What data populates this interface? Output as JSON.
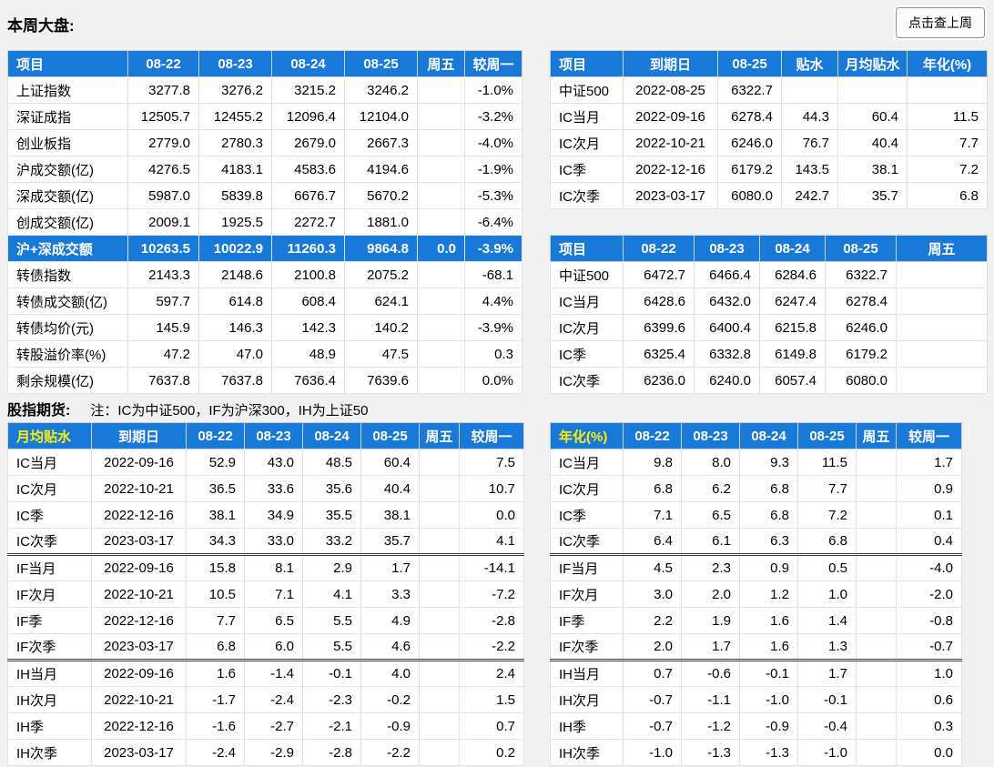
{
  "colors": {
    "header_blue": "#1879D9",
    "accent_yellow": "#FFF200",
    "page_bg": "#F1F1F1"
  },
  "header": {
    "page_title": "本周大盘:",
    "prev_week_button": "点击查上周"
  },
  "futures": {
    "title": "股指期货:",
    "note": "注：IC为中证500，IF为沪深300，IH为上证50"
  },
  "tables": {
    "market": {
      "headers": [
        "项目",
        "08-22",
        "08-23",
        "08-24",
        "08-25",
        "周五",
        "较周一"
      ],
      "accent_header_index": -1,
      "widths": [
        132,
        78,
        80,
        80,
        80,
        52,
        63
      ],
      "aligns": [
        "left",
        "right",
        "right",
        "right",
        "right",
        "right",
        "right"
      ],
      "rows": [
        {
          "cells": [
            "上证指数",
            "3277.8",
            "3276.2",
            "3215.2",
            "3246.2",
            "",
            "-1.0%"
          ]
        },
        {
          "cells": [
            "深证成指",
            "12505.7",
            "12455.2",
            "12096.4",
            "12104.0",
            "",
            "-3.2%"
          ]
        },
        {
          "cells": [
            "创业板指",
            "2779.0",
            "2780.3",
            "2679.0",
            "2667.3",
            "",
            "-4.0%"
          ]
        },
        {
          "cells": [
            "沪成交额(亿)",
            "4276.5",
            "4183.1",
            "4583.6",
            "4194.6",
            "",
            "-1.9%"
          ]
        },
        {
          "cells": [
            "深成交额(亿)",
            "5987.0",
            "5839.8",
            "6676.7",
            "5670.2",
            "",
            "-5.3%"
          ]
        },
        {
          "cells": [
            "创成交额(亿)",
            "2009.1",
            "1925.5",
            "2272.7",
            "1881.0",
            "",
            "-6.4%"
          ]
        },
        {
          "cells": [
            "沪+深成交额",
            "10263.5",
            "10022.9",
            "11260.3",
            "9864.8",
            "0.0",
            "-3.9%"
          ],
          "highlight": true
        },
        {
          "cells": [
            "转债指数",
            "2143.3",
            "2148.6",
            "2100.8",
            "2075.2",
            "",
            "-68.1"
          ]
        },
        {
          "cells": [
            "转债成交额(亿)",
            "597.7",
            "614.8",
            "608.4",
            "624.1",
            "",
            "4.4%"
          ]
        },
        {
          "cells": [
            "转债均价(元)",
            "145.9",
            "146.3",
            "142.3",
            "140.2",
            "",
            "-3.9%"
          ]
        },
        {
          "cells": [
            "转股溢价率(%)",
            "47.2",
            "47.0",
            "48.9",
            "47.5",
            "",
            "0.3"
          ]
        },
        {
          "cells": [
            "剩余规模(亿)",
            "7637.8",
            "7637.8",
            "7636.4",
            "7639.6",
            "",
            "0.0%"
          ]
        }
      ]
    },
    "ic_summary": {
      "headers": [
        "项目",
        "到期日",
        "08-25",
        "贴水",
        "月均贴水",
        "年化(%)"
      ],
      "accent_header_index": -1,
      "widths": [
        80,
        104,
        70,
        62,
        76,
        88
      ],
      "aligns": [
        "left",
        "center",
        "right",
        "right",
        "right",
        "right"
      ],
      "rows": [
        {
          "cells": [
            "中证500",
            "2022-08-25",
            "6322.7",
            "",
            "",
            ""
          ]
        },
        {
          "cells": [
            "IC当月",
            "2022-09-16",
            "6278.4",
            "44.3",
            "60.4",
            "11.5"
          ]
        },
        {
          "cells": [
            "IC次月",
            "2022-10-21",
            "6246.0",
            "76.7",
            "40.4",
            "7.7"
          ]
        },
        {
          "cells": [
            "IC季",
            "2022-12-16",
            "6179.2",
            "143.5",
            "38.1",
            "7.2"
          ]
        },
        {
          "cells": [
            "IC次季",
            "2023-03-17",
            "6080.0",
            "242.7",
            "35.7",
            "6.8"
          ]
        }
      ]
    },
    "ic_daily": {
      "headers": [
        "项目",
        "08-22",
        "08-23",
        "08-24",
        "08-25",
        "周五"
      ],
      "accent_header_index": -1,
      "widths": [
        80,
        78,
        72,
        72,
        78,
        100
      ],
      "aligns": [
        "left",
        "right",
        "right",
        "right",
        "right",
        "right"
      ],
      "rows": [
        {
          "cells": [
            "中证500",
            "6472.7",
            "6466.4",
            "6284.6",
            "6322.7",
            ""
          ]
        },
        {
          "cells": [
            "IC当月",
            "6428.6",
            "6432.0",
            "6247.4",
            "6278.4",
            ""
          ]
        },
        {
          "cells": [
            "IC次月",
            "6399.6",
            "6400.4",
            "6215.8",
            "6246.0",
            ""
          ]
        },
        {
          "cells": [
            "IC季",
            "6325.4",
            "6332.8",
            "6149.8",
            "6179.2",
            ""
          ]
        },
        {
          "cells": [
            "IC次季",
            "6236.0",
            "6240.0",
            "6057.4",
            "6080.0",
            ""
          ]
        }
      ]
    },
    "monthly_basis": {
      "headers": [
        "月均贴水",
        "到期日",
        "08-22",
        "08-23",
        "08-24",
        "08-25",
        "周五",
        "较周一"
      ],
      "accent_header_index": 0,
      "widths": [
        92,
        104,
        64,
        64,
        64,
        64,
        44,
        71
      ],
      "aligns": [
        "left",
        "center",
        "right",
        "right",
        "right",
        "right",
        "right",
        "right"
      ],
      "rows": [
        {
          "cells": [
            "IC当月",
            "2022-09-16",
            "52.9",
            "43.0",
            "48.5",
            "60.4",
            "",
            "7.5"
          ]
        },
        {
          "cells": [
            "IC次月",
            "2022-10-21",
            "36.5",
            "33.6",
            "35.6",
            "40.4",
            "",
            "10.7"
          ]
        },
        {
          "cells": [
            "IC季",
            "2022-12-16",
            "38.1",
            "34.9",
            "35.5",
            "38.1",
            "",
            "0.0"
          ]
        },
        {
          "cells": [
            "IC次季",
            "2023-03-17",
            "34.3",
            "33.0",
            "33.2",
            "35.7",
            "",
            "4.1"
          ]
        },
        {
          "cells": [
            "IF当月",
            "2022-09-16",
            "15.8",
            "8.1",
            "2.9",
            "1.7",
            "",
            "-14.1"
          ],
          "group_start": true
        },
        {
          "cells": [
            "IF次月",
            "2022-10-21",
            "10.5",
            "7.1",
            "4.1",
            "3.3",
            "",
            "-7.2"
          ]
        },
        {
          "cells": [
            "IF季",
            "2022-12-16",
            "7.7",
            "6.5",
            "5.5",
            "4.9",
            "",
            "-2.8"
          ]
        },
        {
          "cells": [
            "IF次季",
            "2023-03-17",
            "6.8",
            "6.0",
            "5.5",
            "4.6",
            "",
            "-2.2"
          ]
        },
        {
          "cells": [
            "IH当月",
            "2022-09-16",
            "1.6",
            "-1.4",
            "-0.1",
            "4.0",
            "",
            "2.4"
          ],
          "group_start": true
        },
        {
          "cells": [
            "IH次月",
            "2022-10-21",
            "-1.7",
            "-2.4",
            "-2.3",
            "-0.2",
            "",
            "1.5"
          ]
        },
        {
          "cells": [
            "IH季",
            "2022-12-16",
            "-1.6",
            "-2.7",
            "-2.1",
            "-0.9",
            "",
            "0.7"
          ]
        },
        {
          "cells": [
            "IH次季",
            "2023-03-17",
            "-2.4",
            "-2.9",
            "-2.8",
            "-2.2",
            "",
            "0.2"
          ]
        }
      ]
    },
    "annualized": {
      "headers": [
        "年化(%)",
        "08-22",
        "08-23",
        "08-24",
        "08-25",
        "周五",
        "较周一"
      ],
      "accent_header_index": 0,
      "widths": [
        80,
        64,
        64,
        64,
        64,
        44,
        72
      ],
      "aligns": [
        "left",
        "right",
        "right",
        "right",
        "right",
        "right",
        "right"
      ],
      "rows": [
        {
          "cells": [
            "IC当月",
            "9.8",
            "8.0",
            "9.3",
            "11.5",
            "",
            "1.7"
          ]
        },
        {
          "cells": [
            "IC次月",
            "6.8",
            "6.2",
            "6.8",
            "7.7",
            "",
            "0.9"
          ]
        },
        {
          "cells": [
            "IC季",
            "7.1",
            "6.5",
            "6.8",
            "7.2",
            "",
            "0.1"
          ]
        },
        {
          "cells": [
            "IC次季",
            "6.4",
            "6.1",
            "6.3",
            "6.8",
            "",
            "0.4"
          ]
        },
        {
          "cells": [
            "IF当月",
            "4.5",
            "2.3",
            "0.9",
            "0.5",
            "",
            "-4.0"
          ],
          "group_start": true
        },
        {
          "cells": [
            "IF次月",
            "3.0",
            "2.0",
            "1.2",
            "1.0",
            "",
            "-2.0"
          ]
        },
        {
          "cells": [
            "IF季",
            "2.2",
            "1.9",
            "1.6",
            "1.4",
            "",
            "-0.8"
          ]
        },
        {
          "cells": [
            "IF次季",
            "2.0",
            "1.7",
            "1.6",
            "1.3",
            "",
            "-0.7"
          ]
        },
        {
          "cells": [
            "IH当月",
            "0.7",
            "-0.6",
            "-0.1",
            "1.7",
            "",
            "1.0"
          ],
          "group_start": true
        },
        {
          "cells": [
            "IH次月",
            "-0.7",
            "-1.1",
            "-1.0",
            "-0.1",
            "",
            "0.6"
          ]
        },
        {
          "cells": [
            "IH季",
            "-0.7",
            "-1.2",
            "-0.9",
            "-0.4",
            "",
            "0.3"
          ]
        },
        {
          "cells": [
            "IH次季",
            "-1.0",
            "-1.3",
            "-1.3",
            "-1.0",
            "",
            "0.0"
          ]
        }
      ]
    }
  }
}
